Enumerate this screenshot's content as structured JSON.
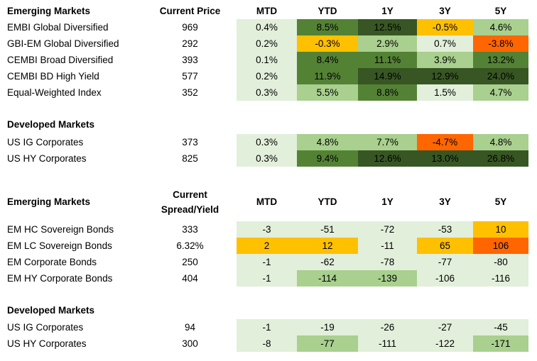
{
  "colors": {
    "pale_green": "#e2efda",
    "light_green": "#a9d08e",
    "medium_green": "#548235",
    "dark_green": "#375623",
    "yellow": "#ffc000",
    "orange": "#ff6600"
  },
  "returns": {
    "title": "Emerging Markets",
    "price_header": "Current Price",
    "columns": [
      "MTD",
      "YTD",
      "1Y",
      "3Y",
      "5Y"
    ],
    "em_rows": [
      {
        "name": "EMBI Global Diversified",
        "price": "969",
        "values": [
          "0.4%",
          "8.5%",
          "12.5%",
          "-0.5%",
          "4.6%"
        ],
        "colors": [
          "#e2efda",
          "#548235",
          "#375623",
          "#ffc000",
          "#a9d08e"
        ]
      },
      {
        "name": "GBI-EM Global Diversified",
        "price": "292",
        "values": [
          "0.2%",
          "-0.3%",
          "2.9%",
          "0.7%",
          "-3.8%"
        ],
        "colors": [
          "#e2efda",
          "#ffc000",
          "#a9d08e",
          "#e2efda",
          "#ff6600"
        ]
      },
      {
        "name": "CEMBI Broad Diversified",
        "price": "393",
        "values": [
          "0.1%",
          "8.4%",
          "11.1%",
          "3.9%",
          "13.2%"
        ],
        "colors": [
          "#e2efda",
          "#548235",
          "#548235",
          "#a9d08e",
          "#548235"
        ]
      },
      {
        "name": "CEMBI BD High Yield",
        "price": "577",
        "values": [
          "0.2%",
          "11.9%",
          "14.9%",
          "12.9%",
          "24.0%"
        ],
        "colors": [
          "#e2efda",
          "#548235",
          "#375623",
          "#375623",
          "#375623"
        ]
      },
      {
        "name": "Equal-Weighted Index",
        "price": "352",
        "values": [
          "0.3%",
          "5.5%",
          "8.8%",
          "1.5%",
          "4.7%"
        ],
        "colors": [
          "#e2efda",
          "#a9d08e",
          "#548235",
          "#e2efda",
          "#a9d08e"
        ]
      }
    ],
    "dm_title": "Developed Markets",
    "dm_rows": [
      {
        "name": "US IG Corporates",
        "price": "373",
        "values": [
          "0.3%",
          "4.8%",
          "7.7%",
          "-4.7%",
          "4.8%"
        ],
        "colors": [
          "#e2efda",
          "#a9d08e",
          "#a9d08e",
          "#ff6600",
          "#a9d08e"
        ]
      },
      {
        "name": "US HY Corporates",
        "price": "825",
        "values": [
          "0.3%",
          "9.4%",
          "12.6%",
          "13.0%",
          "26.8%"
        ],
        "colors": [
          "#e2efda",
          "#548235",
          "#375623",
          "#375623",
          "#375623"
        ]
      }
    ]
  },
  "spreads": {
    "title": "Emerging Markets",
    "header_line1": "Current",
    "header_line2": "Spread/Yield",
    "columns": [
      "MTD",
      "YTD",
      "1Y",
      "3Y",
      "5Y"
    ],
    "em_rows": [
      {
        "name": "EM HC Sovereign Bonds",
        "value": "333",
        "values": [
          "-3",
          "-51",
          "-72",
          "-53",
          "10"
        ],
        "colors": [
          "#e2efda",
          "#e2efda",
          "#e2efda",
          "#e2efda",
          "#ffc000"
        ]
      },
      {
        "name": "EM LC Sovereign Bonds",
        "value": "6.32%",
        "values": [
          "2",
          "12",
          "-11",
          "65",
          "106"
        ],
        "colors": [
          "#ffc000",
          "#ffc000",
          "#e2efda",
          "#ffc000",
          "#ff6600"
        ]
      },
      {
        "name": "EM Corporate Bonds",
        "value": "250",
        "values": [
          "-1",
          "-62",
          "-78",
          "-77",
          "-80"
        ],
        "colors": [
          "#e2efda",
          "#e2efda",
          "#e2efda",
          "#e2efda",
          "#e2efda"
        ]
      },
      {
        "name": "EM HY Corporate Bonds",
        "value": "404",
        "values": [
          "-1",
          "-114",
          "-139",
          "-106",
          "-116"
        ],
        "colors": [
          "#e2efda",
          "#a9d08e",
          "#a9d08e",
          "#e2efda",
          "#e2efda"
        ]
      }
    ],
    "dm_title": "Developed Markets",
    "dm_rows": [
      {
        "name": "US IG Corporates",
        "value": "94",
        "values": [
          "-1",
          "-19",
          "-26",
          "-27",
          "-45"
        ],
        "colors": [
          "#e2efda",
          "#e2efda",
          "#e2efda",
          "#e2efda",
          "#e2efda"
        ]
      },
      {
        "name": "US HY Corporates",
        "value": "300",
        "values": [
          "-8",
          "-77",
          "-111",
          "-122",
          "-171"
        ],
        "colors": [
          "#e2efda",
          "#a9d08e",
          "#e2efda",
          "#e2efda",
          "#a9d08e"
        ]
      }
    ]
  }
}
